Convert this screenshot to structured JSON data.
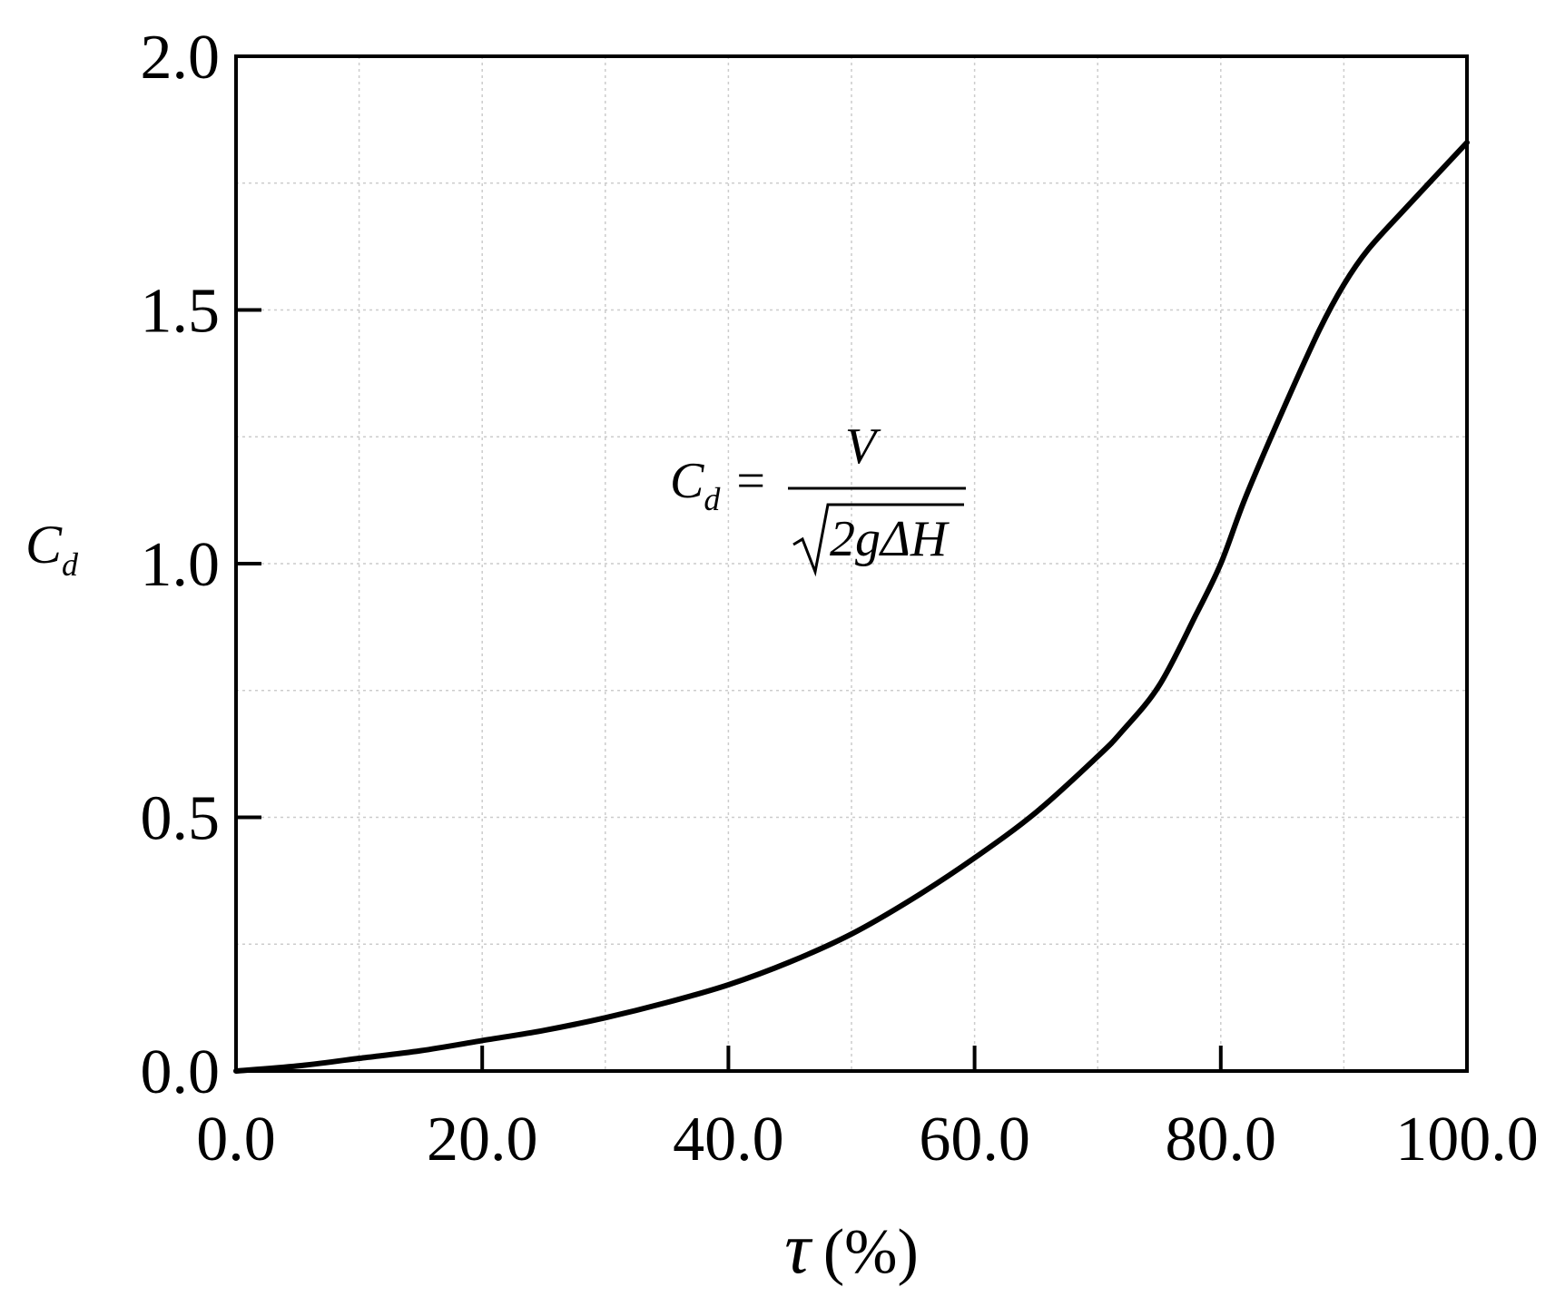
{
  "chart_data": {
    "type": "line",
    "xlabel": {
      "symbol": "τ",
      "unit": "(%)"
    },
    "ylabel": {
      "symbol": "C",
      "subscript": "d"
    },
    "xlim": [
      0,
      100
    ],
    "ylim": [
      0,
      2.0
    ],
    "xticks": [
      "0.0",
      "20.0",
      "40.0",
      "60.0",
      "80.0",
      "100.0"
    ],
    "yticks": [
      "0.0",
      "0.5",
      "1.0",
      "1.5",
      "2.0"
    ],
    "grid": true,
    "annotation": {
      "lhs": "C",
      "lhs_subscript": "d",
      "equals": "=",
      "numerator": "V",
      "denominator": "2gΔH"
    },
    "series": [
      {
        "x": [
          0,
          5,
          10,
          15,
          20,
          25,
          30,
          35,
          40,
          45,
          50,
          55,
          60,
          65,
          70,
          72,
          75,
          78,
          80,
          82,
          85,
          88,
          90,
          92,
          95,
          100
        ],
        "y": [
          0,
          0.01,
          0.025,
          0.04,
          0.06,
          0.08,
          0.105,
          0.135,
          0.17,
          0.215,
          0.27,
          0.34,
          0.42,
          0.51,
          0.62,
          0.67,
          0.76,
          0.9,
          1.0,
          1.13,
          1.3,
          1.46,
          1.55,
          1.62,
          1.7,
          1.83
        ]
      }
    ]
  }
}
